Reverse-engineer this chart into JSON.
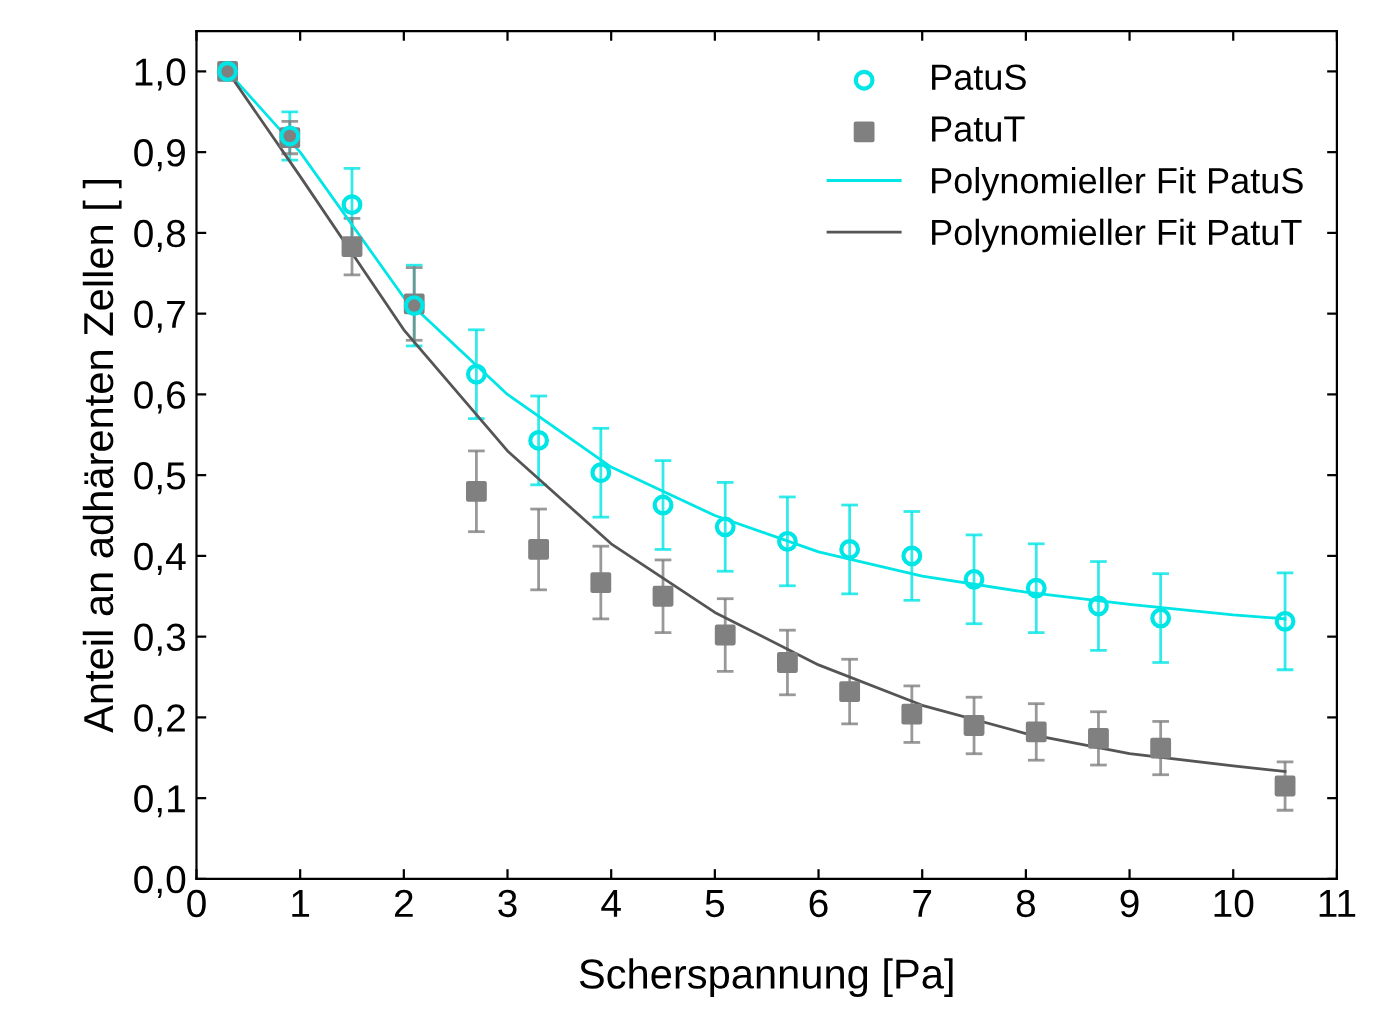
{
  "chart_data": {
    "type": "scatter",
    "xlabel": "Scherspannung [Pa]",
    "ylabel": "Anteil an adhärenten Zellen [ ]",
    "xlim": [
      0,
      11
    ],
    "xticks": [
      0,
      1,
      2,
      3,
      4,
      5,
      6,
      7,
      8,
      9,
      10,
      11
    ],
    "ylim": [
      0,
      1.05
    ],
    "yticks": [
      {
        "value": 0,
        "label": "0,0"
      },
      {
        "value": 0.1,
        "label": "0,1"
      },
      {
        "value": 0.2,
        "label": "0,2"
      },
      {
        "value": 0.3,
        "label": "0,3"
      },
      {
        "value": 0.4,
        "label": "0,4"
      },
      {
        "value": 0.5,
        "label": "0,5"
      },
      {
        "value": 0.6,
        "label": "0,6"
      },
      {
        "value": 0.7,
        "label": "0,7"
      },
      {
        "value": 0.8,
        "label": "0,8"
      },
      {
        "value": 0.9,
        "label": "0,9"
      },
      {
        "value": 1.0,
        "label": "1,0"
      }
    ],
    "legend": "top right",
    "grid": false,
    "series": [
      {
        "name": "PatuS",
        "marker": "circle",
        "color": "#00e5e5",
        "x": [
          0.3,
          0.9,
          1.5,
          2.1,
          2.7,
          3.3,
          3.9,
          4.5,
          5.1,
          5.7,
          6.3,
          6.9,
          7.5,
          8.1,
          8.7,
          9.3,
          10.5
        ],
        "values": [
          1.0,
          0.92,
          0.835,
          0.71,
          0.625,
          0.543,
          0.503,
          0.463,
          0.436,
          0.418,
          0.408,
          0.4,
          0.371,
          0.36,
          0.338,
          0.323,
          0.319
        ],
        "errors": [
          null,
          0.03,
          0.045,
          0.05,
          0.055,
          0.055,
          0.055,
          0.055,
          0.055,
          0.055,
          0.055,
          0.055,
          0.055,
          0.055,
          0.055,
          0.055,
          0.06
        ]
      },
      {
        "name": "PatuT",
        "marker": "square",
        "color": "#808080",
        "x": [
          0.3,
          0.9,
          1.5,
          2.1,
          2.7,
          3.3,
          3.9,
          4.5,
          5.1,
          5.7,
          6.3,
          6.9,
          7.5,
          8.1,
          8.7,
          9.3,
          10.5
        ],
        "values": [
          1.0,
          0.918,
          0.783,
          0.712,
          0.48,
          0.408,
          0.367,
          0.35,
          0.302,
          0.268,
          0.232,
          0.204,
          0.19,
          0.182,
          0.174,
          0.162,
          0.115
        ],
        "errors": [
          null,
          0.02,
          0.035,
          0.045,
          0.05,
          0.05,
          0.045,
          0.045,
          0.045,
          0.04,
          0.04,
          0.035,
          0.035,
          0.035,
          0.033,
          0.033,
          0.03
        ]
      },
      {
        "name": "Polynomieller Fit PatuS",
        "type": "line",
        "marker": "none",
        "color": "#00e5e5",
        "x": [
          0.3,
          1,
          2,
          3,
          4,
          5,
          6,
          7,
          8,
          9,
          10,
          10.5
        ],
        "values": [
          1.0,
          0.9,
          0.72,
          0.6,
          0.51,
          0.45,
          0.405,
          0.375,
          0.355,
          0.34,
          0.327,
          0.322
        ]
      },
      {
        "name": "Polynomieller Fit PatuT",
        "type": "line",
        "marker": "none",
        "color": "#555555",
        "x": [
          0.3,
          1,
          2,
          3,
          4,
          5,
          6,
          7,
          8,
          9,
          10,
          10.5
        ],
        "values": [
          1.0,
          0.87,
          0.68,
          0.53,
          0.415,
          0.33,
          0.265,
          0.215,
          0.18,
          0.155,
          0.14,
          0.133
        ]
      }
    ]
  }
}
